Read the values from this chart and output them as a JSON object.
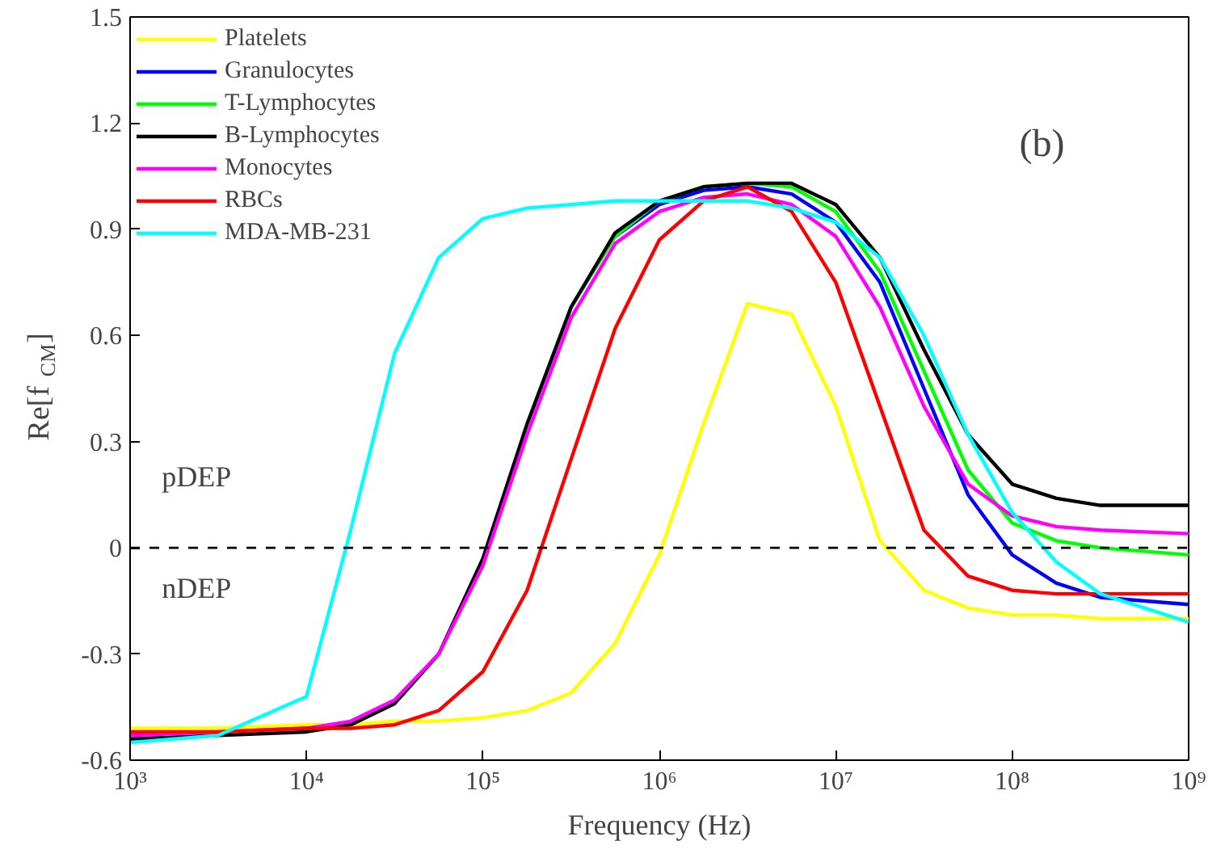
{
  "chart_data": {
    "type": "line",
    "xlabel": "Frequency (Hz)",
    "ylabel": "Re[f$_{CM}$]",
    "annotations": [
      "(b)",
      "pDEP",
      "nDEP"
    ],
    "log": "x",
    "xlim": [
      1000,
      1000000000
    ],
    "ylim": [
      -0.6,
      1.5
    ],
    "xticks": [
      {
        "value": 1000,
        "label": "10³"
      },
      {
        "value": 10000,
        "label": "10⁴"
      },
      {
        "value": 100000,
        "label": "10⁵"
      },
      {
        "value": 1000000,
        "label": "10⁶"
      },
      {
        "value": 10000000,
        "label": "10⁷"
      },
      {
        "value": 100000000,
        "label": "10⁸"
      },
      {
        "value": 1000000000,
        "label": "10⁹"
      }
    ],
    "yticks": [
      {
        "value": -0.6,
        "label": "-0.6"
      },
      {
        "value": -0.3,
        "label": "-0.3"
      },
      0,
      {
        "value": 0.3,
        "label": "0.3"
      },
      {
        "value": 0.6,
        "label": "0.6"
      },
      {
        "value": 0.9,
        "label": "0.9"
      },
      {
        "value": 1.2,
        "label": "1.2"
      },
      {
        "value": 1.5,
        "label": "1.5"
      }
    ],
    "grid": false,
    "legend": "top left",
    "line_style": "solid",
    "x": [
      1000,
      3160,
      10000,
      17800,
      31600,
      56200,
      100000,
      178000,
      316000,
      562000,
      1000000,
      1780000,
      3160000,
      5620000,
      10000000,
      17800000,
      31600000,
      56200000,
      100000000,
      178000000,
      316000000,
      1000000000
    ],
    "ref_lines": [
      {
        "axis": "y",
        "value": 0,
        "label": null,
        "color": "#000000",
        "line_style": "dashed"
      }
    ],
    "series": [
      {
        "name": "Platelets",
        "color": "#ffff00",
        "values": [
          -0.51,
          -0.51,
          -0.5,
          -0.5,
          -0.49,
          -0.49,
          -0.48,
          -0.46,
          -0.41,
          -0.27,
          -0.02,
          0.35,
          0.69,
          0.66,
          0.4,
          0.02,
          -0.12,
          -0.17,
          -0.19,
          -0.19,
          -0.2,
          -0.2
        ]
      },
      {
        "name": "Granulocytes",
        "color": "#0000ff",
        "values": [
          null,
          null,
          null,
          null,
          null,
          null,
          null,
          null,
          null,
          0.88,
          0.97,
          1.01,
          1.02,
          1.0,
          0.92,
          0.75,
          0.45,
          0.15,
          -0.02,
          -0.1,
          -0.14,
          -0.16
        ]
      },
      {
        "name": "T-Lymphocytes",
        "color": "#00ff00",
        "values": [
          null,
          null,
          null,
          null,
          null,
          null,
          null,
          0.35,
          0.68,
          0.88,
          0.98,
          1.02,
          1.03,
          1.02,
          0.95,
          0.78,
          0.5,
          0.22,
          0.07,
          0.02,
          0.0,
          -0.02
        ]
      },
      {
        "name": "B-Lymphocytes",
        "color": "#000000",
        "values": [
          -0.54,
          -0.53,
          -0.52,
          -0.5,
          -0.44,
          -0.3,
          -0.03,
          0.35,
          0.68,
          0.89,
          0.98,
          1.02,
          1.03,
          1.03,
          0.97,
          0.82,
          0.56,
          0.32,
          0.18,
          0.14,
          0.12,
          0.12
        ]
      },
      {
        "name": "Monocytes",
        "color": "#ff00ff",
        "values": [
          -0.53,
          -0.52,
          -0.51,
          -0.49,
          -0.43,
          -0.3,
          -0.05,
          0.32,
          0.65,
          0.86,
          0.95,
          0.99,
          1.0,
          0.97,
          0.88,
          0.68,
          0.4,
          0.18,
          0.09,
          0.06,
          0.05,
          0.04
        ]
      },
      {
        "name": "RBCs",
        "color": "#ff0000",
        "values": [
          -0.52,
          -0.52,
          -0.51,
          -0.51,
          -0.5,
          -0.46,
          -0.35,
          -0.12,
          0.25,
          0.62,
          0.87,
          0.98,
          1.02,
          0.95,
          0.75,
          0.4,
          0.05,
          -0.08,
          -0.12,
          -0.13,
          -0.13,
          -0.13
        ]
      },
      {
        "name": "MDA-MB-231",
        "color": "#00ffff",
        "values": [
          -0.55,
          -0.53,
          -0.42,
          0.05,
          0.55,
          0.82,
          0.93,
          0.96,
          0.97,
          0.98,
          0.98,
          0.98,
          0.98,
          0.96,
          0.92,
          0.82,
          0.6,
          0.32,
          0.1,
          -0.04,
          -0.13,
          -0.21
        ]
      }
    ]
  }
}
